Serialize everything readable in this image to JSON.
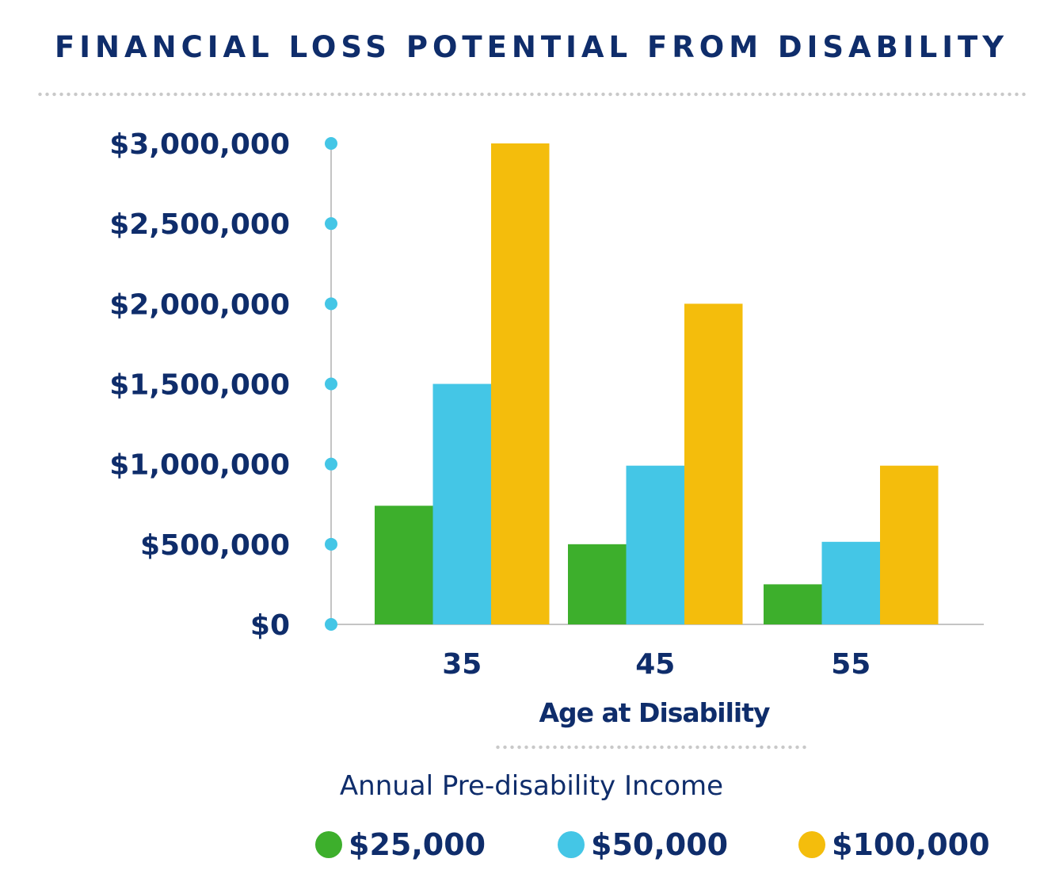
{
  "chart_data": {
    "type": "bar",
    "title": "FINANCIAL LOSS POTENTIAL FROM DISABILITY",
    "xlabel": "Age at Disability",
    "ylabel": "",
    "categories": [
      "35",
      "45",
      "55"
    ],
    "series": [
      {
        "name": "$25,000",
        "color": "#3daf2c",
        "values": [
          740000,
          500000,
          250000
        ]
      },
      {
        "name": "$50,000",
        "color": "#44c6e6",
        "values": [
          1500000,
          990000,
          515000
        ]
      },
      {
        "name": "$100,000",
        "color": "#f4bd0c",
        "values": [
          3000000,
          2000000,
          990000
        ]
      }
    ],
    "ylim": [
      0,
      3000000
    ],
    "yticks": [
      0,
      500000,
      1000000,
      1500000,
      2000000,
      2500000,
      3000000
    ],
    "ytick_labels": [
      "$0",
      "$500,000",
      "$1,000,000",
      "$1,500,000",
      "$2,000,000",
      "$2,500,000",
      "$3,000,000"
    ],
    "grid": false,
    "legend_title": "Annual Pre-disability Income",
    "legend_position": "bottom-center"
  },
  "colors": {
    "text": "#0f2d6b",
    "axis": "#c4c4c4",
    "tick_dot": "#44c6e6"
  }
}
